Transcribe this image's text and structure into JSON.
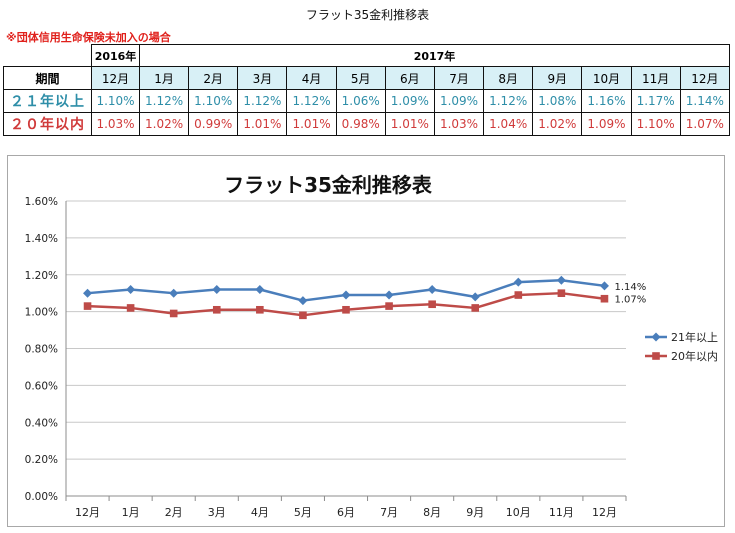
{
  "page_title": "フラット35金利推移表",
  "note": "※団体信用生命保険未加入の場合",
  "table": {
    "year_2016": "2016年",
    "year_2017": "2017年",
    "period_label": "期間",
    "months": [
      "12月",
      "1月",
      "2月",
      "3月",
      "4月",
      "5月",
      "6月",
      "7月",
      "8月",
      "9月",
      "10月",
      "11月",
      "12月"
    ],
    "rows": [
      {
        "label": "２１年以上",
        "values": [
          "1.10%",
          "1.12%",
          "1.10%",
          "1.12%",
          "1.12%",
          "1.06%",
          "1.09%",
          "1.09%",
          "1.12%",
          "1.08%",
          "1.16%",
          "1.17%",
          "1.14%"
        ]
      },
      {
        "label": "２０年以内",
        "values": [
          "1.03%",
          "1.02%",
          "0.99%",
          "1.01%",
          "1.01%",
          "0.98%",
          "1.01%",
          "1.03%",
          "1.04%",
          "1.02%",
          "1.09%",
          "1.10%",
          "1.07%"
        ]
      }
    ]
  },
  "chart_data": {
    "type": "line",
    "title": "フラット35金利推移表",
    "categories": [
      "12月",
      "1月",
      "2月",
      "3月",
      "4月",
      "5月",
      "6月",
      "7月",
      "8月",
      "9月",
      "10月",
      "11月",
      "12月"
    ],
    "series": [
      {
        "name": "21年以上",
        "values": [
          1.1,
          1.12,
          1.1,
          1.12,
          1.12,
          1.06,
          1.09,
          1.09,
          1.12,
          1.08,
          1.16,
          1.17,
          1.14
        ],
        "color": "#4a7ebb",
        "marker": "diamond",
        "end_label": "1.14%"
      },
      {
        "name": "20年以内",
        "values": [
          1.03,
          1.02,
          0.99,
          1.01,
          1.01,
          0.98,
          1.01,
          1.03,
          1.04,
          1.02,
          1.09,
          1.1,
          1.07
        ],
        "color": "#be4b48",
        "marker": "square",
        "end_label": "1.07%"
      }
    ],
    "ylim": [
      0,
      1.6
    ],
    "yticks": [
      "0.00%",
      "0.20%",
      "0.40%",
      "0.60%",
      "0.80%",
      "1.00%",
      "1.20%",
      "1.40%",
      "1.60%"
    ],
    "grid": true,
    "legend": "right",
    "xlabel": "",
    "ylabel": ""
  }
}
